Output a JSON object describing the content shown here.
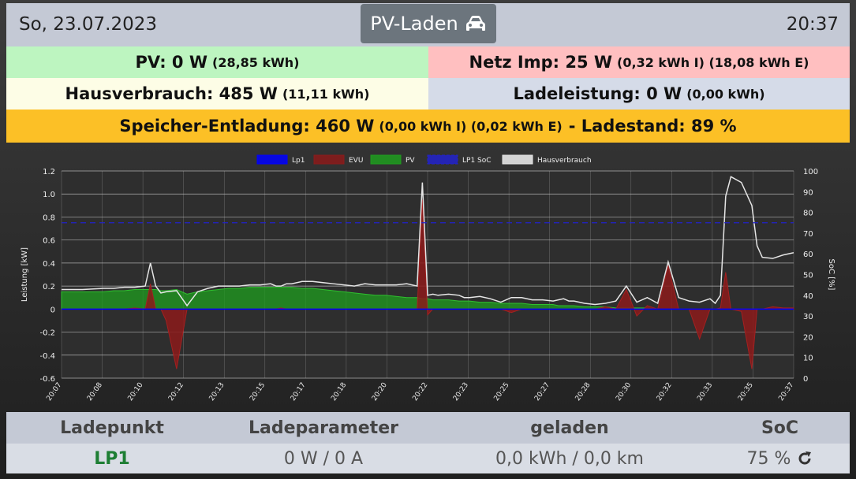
{
  "header": {
    "date": "So, 23.07.2023",
    "mode_label": "PV-Laden",
    "mode_icon": "car-icon",
    "time": "20:37"
  },
  "summary": {
    "pv": {
      "label": "PV: 0 W",
      "detail": "(28,85 kWh)",
      "color": "#bdf5c0"
    },
    "grid": {
      "label": "Netz Imp: 25 W",
      "detail": "(0,32 kWh I) (18,08 kWh E)",
      "color": "#ffbfc0"
    },
    "house": {
      "label": "Hausverbrauch: 485 W",
      "detail": "(11,11 kWh)",
      "color": "#fdfde6"
    },
    "charge": {
      "label": "Ladeleistung: 0 W",
      "detail": "(0,00 kWh)",
      "color": "#d5dbe8"
    },
    "storage": {
      "label": "Speicher-Entladung: 460 W",
      "detail": "(0,00 kWh I) (0,02 kWh E)",
      "soc_label": "- Ladestand: 89 %",
      "color": "#fcc026"
    }
  },
  "chart_data": {
    "type": "line",
    "ylabel": "Leistung [kW]",
    "y2label": "SoC [%]",
    "ylim": [
      -0.6,
      1.2
    ],
    "y2lim": [
      0,
      100
    ],
    "x_ticks": [
      "20:07",
      "20:08",
      "20:10",
      "20:12",
      "20:13",
      "20:15",
      "20:17",
      "20:18",
      "20:20",
      "20:22",
      "20:23",
      "20:25",
      "20:27",
      "20:28",
      "20:30",
      "20:32",
      "20:33",
      "20:35",
      "20:37"
    ],
    "y_ticks": [
      "1.2",
      "1.0",
      "0.8",
      "0.6",
      "0.4",
      "0.2",
      "0",
      "-0.2",
      "-0.4",
      "-0.6"
    ],
    "y2_ticks": [
      "100",
      "90",
      "80",
      "70",
      "60",
      "50",
      "40",
      "30",
      "20",
      "10",
      "0"
    ],
    "legend": [
      "Lp1",
      "EVU",
      "PV",
      "LP1 SoC",
      "Hausverbrauch"
    ],
    "legend_position": "top",
    "grid": true,
    "colors": {
      "lp1": "#0000ff",
      "evu": "#8b1a1a",
      "pv": "#1f9e1f",
      "soc": "#2222cc",
      "house": "#e6e6e6"
    },
    "x_minutes": [
      0,
      2,
      4,
      5,
      6,
      7,
      8,
      8.5,
      9,
      9.5,
      10,
      11,
      12,
      13,
      14,
      15,
      16,
      17,
      18,
      19,
      20,
      20.5,
      21,
      21.5,
      22,
      23,
      24,
      25,
      26,
      27,
      28,
      29,
      30,
      31,
      32,
      33,
      34,
      34.5,
      35,
      35.5,
      36,
      37,
      38,
      38.5,
      39,
      40,
      41,
      42,
      43,
      44,
      45,
      46,
      47,
      47.5,
      48,
      48.5,
      49,
      50,
      51,
      52,
      53,
      54,
      55,
      56,
      57,
      58,
      59,
      60,
      61,
      62,
      62.5,
      63,
      63.5,
      64,
      65,
      66,
      66.5,
      67,
      68,
      69,
      70
    ],
    "series": [
      {
        "name": "Hausverbrauch",
        "values": [
          0.17,
          0.17,
          0.18,
          0.18,
          0.19,
          0.19,
          0.2,
          0.4,
          0.2,
          0.14,
          0.15,
          0.16,
          0.03,
          0.15,
          0.18,
          0.2,
          0.2,
          0.2,
          0.21,
          0.21,
          0.22,
          0.2,
          0.2,
          0.22,
          0.22,
          0.24,
          0.24,
          0.23,
          0.22,
          0.21,
          0.2,
          0.22,
          0.21,
          0.21,
          0.21,
          0.22,
          0.2,
          1.1,
          0.12,
          0.13,
          0.12,
          0.13,
          0.12,
          0.1,
          0.1,
          0.11,
          0.09,
          0.06,
          0.1,
          0.1,
          0.08,
          0.08,
          0.07,
          0.08,
          0.09,
          0.07,
          0.07,
          0.05,
          0.04,
          0.05,
          0.07,
          0.2,
          0.06,
          0.1,
          0.05,
          0.41,
          0.1,
          0.07,
          0.06,
          0.09,
          0.05,
          0.12,
          0.98,
          1.15,
          1.1,
          0.9,
          0.55,
          0.45,
          0.44,
          0.47,
          0.49
        ]
      },
      {
        "name": "PV",
        "values": [
          0.15,
          0.15,
          0.15,
          0.16,
          0.16,
          0.17,
          0.17,
          0.17,
          0.17,
          0.16,
          0.16,
          0.17,
          0.13,
          0.15,
          0.16,
          0.17,
          0.18,
          0.18,
          0.19,
          0.19,
          0.19,
          0.19,
          0.19,
          0.19,
          0.19,
          0.18,
          0.18,
          0.17,
          0.16,
          0.15,
          0.14,
          0.13,
          0.12,
          0.12,
          0.11,
          0.1,
          0.1,
          0.09,
          0.09,
          0.08,
          0.08,
          0.08,
          0.07,
          0.07,
          0.07,
          0.06,
          0.06,
          0.05,
          0.05,
          0.05,
          0.04,
          0.04,
          0.04,
          0.03,
          0.03,
          0.03,
          0.03,
          0.02,
          0.02,
          0.02,
          0.01,
          0.01,
          0.01,
          0.01,
          0.0,
          0.0,
          0.0,
          0.0,
          0.0,
          0.0,
          0.0,
          0.0,
          0.0,
          0.0,
          0.0,
          0.0,
          0.0,
          0.0,
          0.0,
          0.0,
          0.0
        ]
      },
      {
        "name": "EVU",
        "values": [
          0,
          0,
          0,
          0,
          0,
          0.01,
          0,
          0.22,
          0,
          0,
          -0.1,
          -0.52,
          0,
          0,
          0,
          0,
          0,
          0,
          0,
          0,
          0,
          0,
          0.01,
          0,
          0,
          0,
          0,
          0,
          0,
          0,
          0,
          0,
          0,
          0,
          0,
          0,
          0,
          0.95,
          -0.05,
          0,
          0,
          0,
          0,
          0,
          0,
          0,
          0,
          0,
          -0.03,
          0,
          0,
          0,
          0,
          0,
          0,
          0,
          0,
          0,
          0,
          0.02,
          0,
          0.17,
          -0.06,
          0.03,
          0,
          0.38,
          0,
          0,
          -0.26,
          0,
          0,
          0.01,
          0.32,
          0,
          -0.02,
          -0.52,
          0,
          0,
          0.02,
          0.01,
          0.01
        ]
      },
      {
        "name": "LP1 SoC",
        "values": [
          75
        ]
      },
      {
        "name": "Lp1",
        "values": [
          0
        ]
      }
    ]
  },
  "table": {
    "headers": [
      "Ladepunkt",
      "Ladeparameter",
      "geladen",
      "SoC"
    ],
    "row": {
      "name": "LP1",
      "params": "0 W / 0 A",
      "charged": "0,0 kWh / 0,0 km",
      "soc": "75 %",
      "refresh_icon": "refresh-icon"
    }
  }
}
